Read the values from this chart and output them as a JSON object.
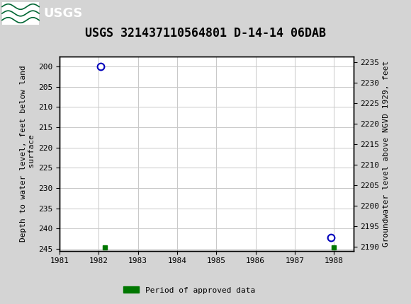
{
  "title": "USGS 321437110564801 D-14-14 06DAB",
  "header_bg_color": "#006633",
  "plot_bg_color": "#ffffff",
  "fig_bg_color": "#d4d4d4",
  "grid_color": "#c8c8c8",
  "ylabel_left": "Depth to water level, feet below land\n surface",
  "ylabel_right": "Groundwater level above NGVD 1929, feet",
  "xlim": [
    1981,
    1988.5
  ],
  "xticks": [
    1981,
    1982,
    1983,
    1984,
    1985,
    1986,
    1987,
    1988
  ],
  "ylim_left": [
    245.5,
    197.5
  ],
  "yticks_left": [
    200,
    205,
    210,
    215,
    220,
    225,
    230,
    235,
    240,
    245
  ],
  "ylim_right": [
    2189.0,
    2236.5
  ],
  "yticks_right": [
    2190,
    2195,
    2200,
    2205,
    2210,
    2215,
    2220,
    2225,
    2230,
    2235
  ],
  "data_points": [
    {
      "x": 1982.05,
      "y_left": 200.0,
      "type": "open_circle",
      "color": "#0000bb"
    },
    {
      "x": 1982.15,
      "y_left": 244.6,
      "type": "green_rect",
      "color": "#007700"
    },
    {
      "x": 1987.92,
      "y_left": 242.3,
      "type": "open_circle",
      "color": "#0000bb"
    },
    {
      "x": 1988.0,
      "y_left": 244.6,
      "type": "green_rect",
      "color": "#007700"
    }
  ],
  "legend_label": "Period of approved data",
  "legend_color": "#007700",
  "title_fontsize": 12,
  "axis_fontsize": 8,
  "tick_fontsize": 8,
  "font_family": "monospace"
}
